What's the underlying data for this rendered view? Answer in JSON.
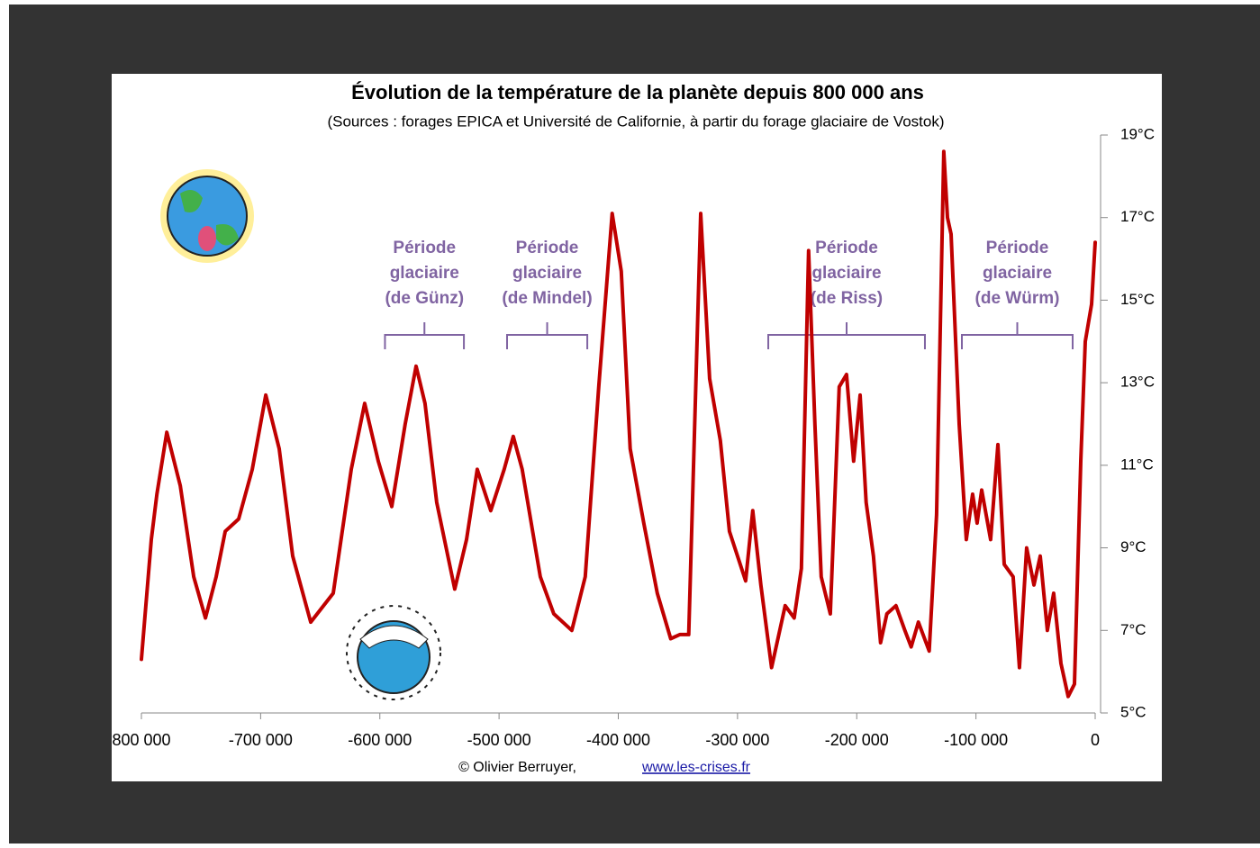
{
  "chart_data": {
    "type": "line",
    "title": "Évolution de la température de la planète depuis 800 000 ans",
    "subtitle": "(Sources : forages EPICA et Université de Californie, à partir du forage glaciaire de Vostok)",
    "footer": "© Olivier Berruyer,",
    "link": "www.les-crises.fr",
    "color": "#c00000",
    "x": [
      -800000,
      -791700,
      -787000,
      -778700,
      -767400,
      -756100,
      -746300,
      -737300,
      -729700,
      -718400,
      -707000,
      -695700,
      -684400,
      -673100,
      -658000,
      -639100,
      -624000,
      -612700,
      -601300,
      -590000,
      -578700,
      -569600,
      -562100,
      -552300,
      -537200,
      -527300,
      -518300,
      -507000,
      -495700,
      -488100,
      -480600,
      -465400,
      -454100,
      -439000,
      -427700,
      -416400,
      -405100,
      -397500,
      -390000,
      -378600,
      -367300,
      -356000,
      -348400,
      -340900,
      -330900,
      -323400,
      -314400,
      -306800,
      -293200,
      -287200,
      -280400,
      -271400,
      -260000,
      -252500,
      -246400,
      -240400,
      -235100,
      -229800,
      -222200,
      -214700,
      -208600,
      -202600,
      -197200,
      -192100,
      -186000,
      -180000,
      -174700,
      -167100,
      -159600,
      -154300,
      -148300,
      -139200,
      -133000,
      -127000,
      -123900,
      -120900,
      -114100,
      -108100,
      -102800,
      -99000,
      -95200,
      -87700,
      -81600,
      -76300,
      -68800,
      -63500,
      -57500,
      -51400,
      -46100,
      -40100,
      -34800,
      -28700,
      -22700,
      -17400,
      -12100,
      -8300,
      -3000,
      0
    ],
    "values": [
      6.3,
      9.2,
      10.3,
      11.8,
      10.5,
      8.3,
      7.3,
      8.3,
      9.4,
      9.7,
      10.9,
      12.7,
      11.4,
      8.8,
      7.2,
      7.9,
      10.9,
      12.5,
      11.1,
      10.0,
      12.0,
      13.4,
      12.5,
      10.1,
      8.0,
      9.2,
      10.9,
      9.9,
      10.9,
      11.7,
      10.9,
      8.3,
      7.4,
      7.0,
      8.3,
      12.9,
      17.1,
      15.7,
      11.4,
      9.6,
      7.9,
      6.8,
      6.9,
      6.9,
      17.1,
      13.1,
      11.6,
      9.4,
      8.2,
      9.9,
      8.1,
      6.1,
      7.6,
      7.3,
      8.5,
      16.2,
      12.0,
      8.3,
      7.4,
      12.9,
      13.2,
      11.1,
      12.7,
      10.1,
      8.8,
      6.7,
      7.4,
      7.6,
      7.0,
      6.6,
      7.2,
      6.5,
      9.8,
      18.6,
      17.0,
      16.6,
      12.0,
      9.2,
      10.3,
      9.6,
      10.4,
      9.2,
      11.5,
      8.6,
      8.3,
      6.1,
      9.0,
      8.1,
      8.8,
      7.0,
      7.9,
      6.2,
      5.4,
      5.7,
      11.1,
      14.0,
      14.9,
      16.4
    ],
    "xlim": [
      -800000,
      0
    ],
    "xticks": [
      {
        "value": -800000,
        "label": "800 000"
      },
      {
        "value": -700000,
        "label": "-700 000"
      },
      {
        "value": -600000,
        "label": "-600 000"
      },
      {
        "value": -500000,
        "label": "-500 000"
      },
      {
        "value": -400000,
        "label": "-400 000"
      },
      {
        "value": -300000,
        "label": "-300 000"
      },
      {
        "value": -200000,
        "label": "-200 000"
      },
      {
        "value": -100000,
        "label": "-100 000"
      },
      0
    ],
    "ylim": [
      5,
      19
    ],
    "yticks": [
      {
        "value": 5,
        "label": "5°C"
      },
      {
        "value": 7,
        "label": "7°C"
      },
      {
        "value": 9,
        "label": "9°C"
      },
      {
        "value": 11,
        "label": "11°C"
      },
      {
        "value": 13,
        "label": "13°C"
      },
      {
        "value": 15,
        "label": "15°C"
      },
      {
        "value": 17,
        "label": "17°C"
      },
      {
        "value": 19,
        "label": "19°C"
      }
    ],
    "annotation_color": "#8064a2",
    "annotations": [
      {
        "lines": [
          "Période",
          "glaciaire",
          "(de Günz)"
        ],
        "x": [
          -595700,
          -529500
        ]
      },
      {
        "lines": [
          "Période",
          "glaciaire",
          "(de Mindel)"
        ],
        "x": [
          -493300,
          -426000
        ]
      },
      {
        "lines": [
          "Période",
          "glaciaire",
          "(de Riss)"
        ],
        "x": [
          -274200,
          -142800
        ]
      },
      {
        "lines": [
          "Période",
          "glaciaire",
          "(de Würm)"
        ],
        "x": [
          -111800,
          -18900
        ]
      }
    ]
  }
}
